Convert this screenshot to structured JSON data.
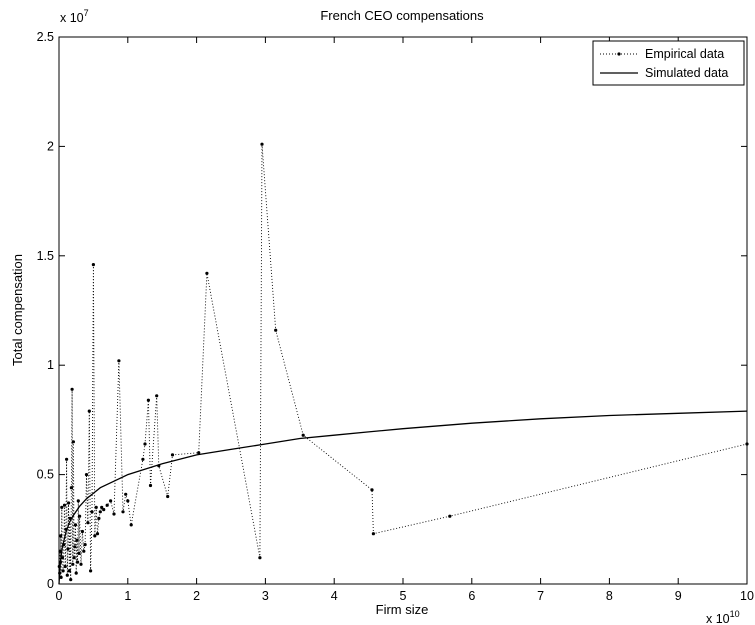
{
  "chart_data": {
    "type": "line",
    "title": "French CEO compensations",
    "xlabel": "Firm size",
    "ylabel": "Total compensation",
    "x_exponent_label": "x 10",
    "x_exponent": "10",
    "y_exponent_label": "x 10",
    "y_exponent": "7",
    "xlim": [
      0,
      10
    ],
    "ylim": [
      0,
      2.5
    ],
    "x_ticks": [
      "0",
      "1",
      "2",
      "3",
      "4",
      "5",
      "6",
      "7",
      "8",
      "9",
      "10"
    ],
    "y_ticks": [
      "0",
      "0.5",
      "1",
      "1.5",
      "2",
      "2.5"
    ],
    "legend_position": "top-right",
    "grid": false,
    "series": [
      {
        "name": "Empirical data",
        "style": "dotted-with-points",
        "color": "#000000",
        "x": [
          0.005,
          0.01,
          0.015,
          0.02,
          0.025,
          0.03,
          0.04,
          0.05,
          0.06,
          0.07,
          0.08,
          0.09,
          0.1,
          0.11,
          0.12,
          0.13,
          0.14,
          0.15,
          0.16,
          0.17,
          0.18,
          0.19,
          0.2,
          0.21,
          0.22,
          0.23,
          0.24,
          0.25,
          0.26,
          0.27,
          0.28,
          0.29,
          0.3,
          0.32,
          0.34,
          0.36,
          0.38,
          0.4,
          0.42,
          0.44,
          0.46,
          0.48,
          0.5,
          0.52,
          0.54,
          0.56,
          0.58,
          0.6,
          0.62,
          0.65,
          0.7,
          0.75,
          0.8,
          0.87,
          0.93,
          0.97,
          1.0,
          1.05,
          1.22,
          1.25,
          1.3,
          1.33,
          1.42,
          1.45,
          1.58,
          1.65,
          2.03,
          2.15,
          2.92,
          2.95,
          3.15,
          3.55,
          4.55,
          4.57,
          5.68,
          10.0
        ],
        "y": [
          0.08,
          0.05,
          0.15,
          0.1,
          0.22,
          0.03,
          0.35,
          0.12,
          0.06,
          0.18,
          0.36,
          0.08,
          0.25,
          0.57,
          0.04,
          0.16,
          0.37,
          0.06,
          0.3,
          0.02,
          0.44,
          0.89,
          0.09,
          0.65,
          0.12,
          0.17,
          0.27,
          0.05,
          0.2,
          0.1,
          0.38,
          0.14,
          0.31,
          0.09,
          0.24,
          0.15,
          0.18,
          0.5,
          0.28,
          0.79,
          0.06,
          0.33,
          1.46,
          0.22,
          0.35,
          0.23,
          0.3,
          0.33,
          0.35,
          0.34,
          0.36,
          0.38,
          0.32,
          1.02,
          0.33,
          0.41,
          0.38,
          0.27,
          0.57,
          0.64,
          0.84,
          0.45,
          0.86,
          0.54,
          0.4,
          0.59,
          0.6,
          1.42,
          0.12,
          2.01,
          1.16,
          0.68,
          0.43,
          0.23,
          0.31,
          0.64
        ]
      },
      {
        "name": "Simulated data",
        "style": "solid",
        "color": "#000000",
        "x": [
          0.0,
          0.02,
          0.05,
          0.1,
          0.15,
          0.2,
          0.3,
          0.4,
          0.5,
          0.6,
          0.8,
          1.0,
          1.2,
          1.5,
          2.0,
          2.5,
          3.0,
          3.5,
          4.0,
          4.5,
          5.0,
          6.0,
          7.0,
          8.0,
          9.0,
          10.0
        ],
        "y": [
          0.0,
          0.1,
          0.17,
          0.235,
          0.28,
          0.31,
          0.355,
          0.39,
          0.415,
          0.44,
          0.47,
          0.5,
          0.52,
          0.55,
          0.59,
          0.615,
          0.64,
          0.665,
          0.68,
          0.695,
          0.71,
          0.735,
          0.755,
          0.77,
          0.78,
          0.79
        ]
      }
    ]
  }
}
